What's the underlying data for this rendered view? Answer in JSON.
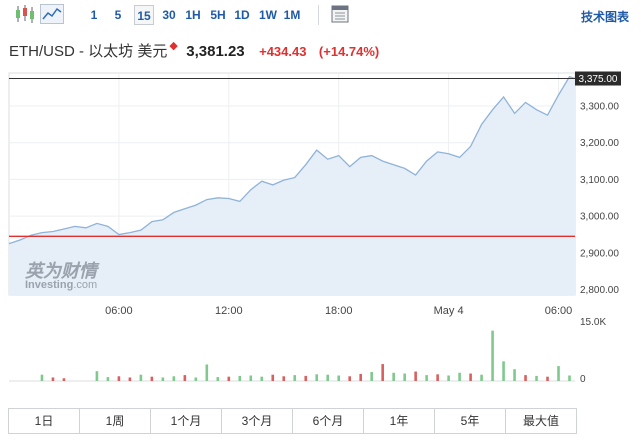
{
  "toolbar": {
    "candle_icon": "candlestick-icon",
    "area_icon": "area-chart-icon",
    "periods": [
      "1",
      "5",
      "15",
      "30",
      "1H",
      "5H",
      "1D",
      "1W",
      "1M"
    ],
    "active_period": "15",
    "calendar_icon": "calendar-icon",
    "tech_chart_label": "技术图表"
  },
  "header": {
    "pair": "ETH/USD - 以太坊 美元",
    "marker": "◆",
    "price": "3,381.23",
    "change": "+434.43",
    "change_pct": "(+14.74%)"
  },
  "watermark": {
    "cn": "英为财情",
    "en": "Investing",
    "suffix": ".com"
  },
  "colors": {
    "line": "#8fb3d9",
    "area": "#e6eef7",
    "reference_line": "#e03030",
    "up_volume": "#7fc98f",
    "down_volume": "#d96060",
    "price_tag": "#2b2b2b"
  },
  "chart_data": {
    "type": "area",
    "x_ticks": [
      {
        "label": "06:00",
        "x": 10
      },
      {
        "label": "12:00",
        "x": 20
      },
      {
        "label": "18:00",
        "x": 30
      },
      {
        "label": "May 4",
        "x": 40
      },
      {
        "label": "06:00",
        "x": 50
      }
    ],
    "y_ticks": [
      2800,
      2900,
      3000,
      3100,
      3200,
      3300
    ],
    "y_tick_labels": [
      "2,800.00",
      "2,900.00",
      "3,000.00",
      "3,100.00",
      "3,200.00",
      "3,300.00"
    ],
    "ylim": [
      2785,
      3390
    ],
    "xlim": [
      0,
      51.5
    ],
    "current_price_label": "3,375.00",
    "current_price": 3375,
    "reference_price": 2945,
    "series": [
      {
        "values": [
          [
            0,
            2925
          ],
          [
            1,
            2935
          ],
          [
            2,
            2948
          ],
          [
            3,
            2955
          ],
          [
            4,
            2958
          ],
          [
            5,
            2965
          ],
          [
            6,
            2972
          ],
          [
            7,
            2968
          ],
          [
            8,
            2980
          ],
          [
            9,
            2972
          ],
          [
            10,
            2950
          ],
          [
            11,
            2955
          ],
          [
            12,
            2962
          ],
          [
            13,
            2985
          ],
          [
            14,
            2990
          ],
          [
            15,
            3010
          ],
          [
            16,
            3020
          ],
          [
            17,
            3030
          ],
          [
            18,
            3045
          ],
          [
            19,
            3050
          ],
          [
            20,
            3048
          ],
          [
            21,
            3040
          ],
          [
            22,
            3072
          ],
          [
            23,
            3095
          ],
          [
            24,
            3085
          ],
          [
            25,
            3098
          ],
          [
            26,
            3105
          ],
          [
            27,
            3140
          ],
          [
            28,
            3180
          ],
          [
            29,
            3155
          ],
          [
            30,
            3165
          ],
          [
            31,
            3135
          ],
          [
            32,
            3160
          ],
          [
            33,
            3165
          ],
          [
            34,
            3150
          ],
          [
            35,
            3140
          ],
          [
            36,
            3130
          ],
          [
            37,
            3112
          ],
          [
            38,
            3150
          ],
          [
            39,
            3175
          ],
          [
            40,
            3170
          ],
          [
            41,
            3160
          ],
          [
            42,
            3190
          ],
          [
            43,
            3250
          ],
          [
            44,
            3290
          ],
          [
            45,
            3325
          ],
          [
            46,
            3280
          ],
          [
            47,
            3310
          ],
          [
            48,
            3290
          ],
          [
            49,
            3275
          ],
          [
            50,
            3330
          ],
          [
            51,
            3380
          ],
          [
            51.5,
            3375
          ]
        ]
      }
    ],
    "volume": {
      "max_label": "15.0K",
      "zero_label": "0",
      "max": 15000,
      "bars": [
        [
          3,
          1600,
          "up"
        ],
        [
          4,
          900,
          "down"
        ],
        [
          5,
          700,
          "down"
        ],
        [
          8,
          2500,
          "up"
        ],
        [
          9,
          1000,
          "up"
        ],
        [
          10,
          1200,
          "down"
        ],
        [
          11,
          900,
          "down"
        ],
        [
          12,
          1600,
          "up"
        ],
        [
          13,
          1100,
          "down"
        ],
        [
          14,
          900,
          "up"
        ],
        [
          15,
          1200,
          "up"
        ],
        [
          16,
          1500,
          "down"
        ],
        [
          17,
          900,
          "up"
        ],
        [
          18,
          4200,
          "up"
        ],
        [
          19,
          1000,
          "up"
        ],
        [
          20,
          1100,
          "down"
        ],
        [
          21,
          1300,
          "up"
        ],
        [
          22,
          1400,
          "up"
        ],
        [
          23,
          1100,
          "up"
        ],
        [
          24,
          1600,
          "down"
        ],
        [
          25,
          1200,
          "down"
        ],
        [
          26,
          1500,
          "up"
        ],
        [
          27,
          1300,
          "down"
        ],
        [
          28,
          1700,
          "up"
        ],
        [
          29,
          1600,
          "up"
        ],
        [
          30,
          1400,
          "up"
        ],
        [
          31,
          1200,
          "down"
        ],
        [
          32,
          1800,
          "down"
        ],
        [
          33,
          2300,
          "up"
        ],
        [
          34,
          4300,
          "down"
        ],
        [
          35,
          2100,
          "up"
        ],
        [
          36,
          1900,
          "up"
        ],
        [
          37,
          2400,
          "down"
        ],
        [
          38,
          1500,
          "up"
        ],
        [
          39,
          1700,
          "down"
        ],
        [
          40,
          1400,
          "up"
        ],
        [
          41,
          2100,
          "up"
        ],
        [
          42,
          1900,
          "down"
        ],
        [
          43,
          1600,
          "up"
        ],
        [
          44,
          12800,
          "up"
        ],
        [
          45,
          5000,
          "up"
        ],
        [
          46,
          3000,
          "up"
        ],
        [
          47,
          1500,
          "down"
        ],
        [
          48,
          1300,
          "up"
        ],
        [
          49,
          1100,
          "down"
        ],
        [
          50,
          3800,
          "up"
        ],
        [
          51,
          1400,
          "up"
        ]
      ]
    }
  },
  "ranges": [
    "1日",
    "1周",
    "1个月",
    "3个月",
    "6个月",
    "1年",
    "5年",
    "最大值"
  ]
}
